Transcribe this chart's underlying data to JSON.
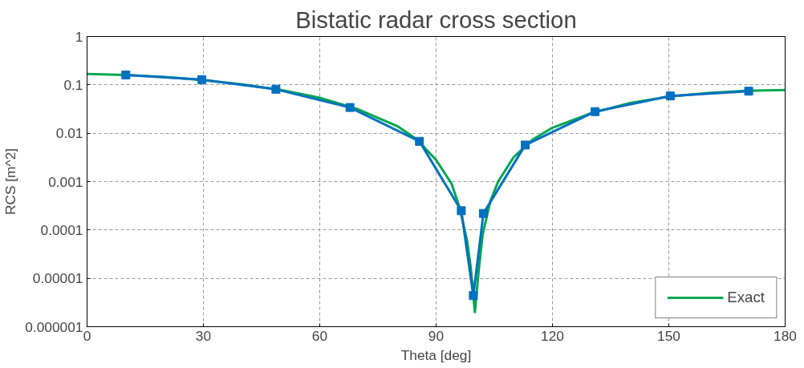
{
  "chart_data": {
    "type": "line",
    "title": "Bistatic radar cross section",
    "xlabel": "Theta [deg]",
    "ylabel": "RCS [m^2]",
    "log": "y",
    "grid": true,
    "legend": "bottom right",
    "xlim": [
      0,
      180
    ],
    "xticks": [
      0,
      30,
      60,
      90,
      120,
      150,
      180
    ],
    "ylim": [
      1e-06,
      1
    ],
    "yticks": [
      {
        "value": 1e-06,
        "label": "0.000001"
      },
      {
        "value": 1e-05,
        "label": "0.00001"
      },
      {
        "value": 0.0001,
        "label": "0.0001"
      },
      {
        "value": 0.001,
        "label": "0.001"
      },
      {
        "value": 0.01,
        "label": "0.01"
      },
      {
        "value": 0.1,
        "label": "0.1"
      },
      {
        "value": 1,
        "label": "1"
      }
    ],
    "series": [
      {
        "name": "Exact",
        "color": "#00a650",
        "marker": "none",
        "x": [
          0,
          10,
          20,
          30,
          40,
          50,
          60,
          70,
          80,
          85,
          90,
          94,
          96,
          98,
          99,
          100,
          101,
          102,
          104,
          106,
          110,
          115,
          120,
          130,
          140,
          150,
          160,
          170,
          180
        ],
        "values": [
          0.168,
          0.16,
          0.145,
          0.125,
          0.102,
          0.078,
          0.054,
          0.031,
          0.014,
          0.0075,
          0.0028,
          0.0009,
          0.0003,
          6e-05,
          1.5e-05,
          2e-06,
          1.5e-05,
          8e-05,
          0.0004,
          0.001,
          0.0032,
          0.0075,
          0.013,
          0.026,
          0.042,
          0.057,
          0.068,
          0.075,
          0.078
        ]
      },
      {
        "color": "#0070c0",
        "marker": "square",
        "x": [
          10,
          29.6,
          48.7,
          67.8,
          85.7,
          96.5,
          99.6,
          102.2,
          113,
          131,
          150.4,
          170.6
        ],
        "values": [
          0.16,
          0.128,
          0.081,
          0.034,
          0.0068,
          0.00025,
          4.4e-06,
          0.00022,
          0.0057,
          0.028,
          0.059,
          0.074
        ]
      }
    ]
  }
}
